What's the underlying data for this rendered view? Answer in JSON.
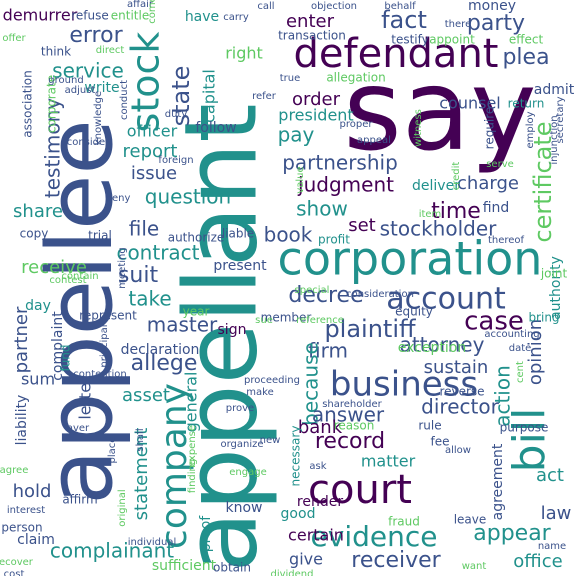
{
  "palette": [
    "#440154",
    "#3b528b",
    "#21918c",
    "#5ec962",
    "#fde725"
  ],
  "words": [
    {
      "text": "say",
      "color": "#440154"
    },
    {
      "text": "appellant",
      "color": "#21918c"
    },
    {
      "text": "appellee",
      "color": "#3b528b"
    },
    {
      "text": "corporation",
      "color": "#21918c"
    },
    {
      "text": "defendant",
      "color": "#440154"
    },
    {
      "text": "court",
      "color": "#440154"
    },
    {
      "text": "business",
      "color": "#3b528b"
    },
    {
      "text": "bill",
      "color": "#21918c"
    },
    {
      "text": "stock",
      "color": "#21918c"
    },
    {
      "text": "company",
      "color": "#21918c"
    },
    {
      "text": "evidence",
      "color": "#21918c"
    },
    {
      "text": "account",
      "color": "#3b528b"
    },
    {
      "text": "fact",
      "color": "#3b528b"
    },
    {
      "text": "case",
      "color": "#440154"
    },
    {
      "text": "plaintiff",
      "color": "#3b528b"
    },
    {
      "text": "receiver",
      "color": "#3b528b"
    },
    {
      "text": "certificate",
      "color": "#5ec962"
    },
    {
      "text": "party",
      "color": "#3b528b"
    },
    {
      "text": "plea",
      "color": "#3b528b"
    },
    {
      "text": "error",
      "color": "#3b528b"
    },
    {
      "text": "time",
      "color": "#440154"
    },
    {
      "text": "state",
      "color": "#3b528b"
    },
    {
      "text": "record",
      "color": "#440154"
    },
    {
      "text": "decree",
      "color": "#3b528b"
    },
    {
      "text": "attorney",
      "color": "#3b528b"
    },
    {
      "text": "appear",
      "color": "#21918c"
    },
    {
      "text": "judgment",
      "color": "#440154"
    },
    {
      "text": "partnership",
      "color": "#3b528b"
    },
    {
      "text": "question",
      "color": "#21918c"
    },
    {
      "text": "contract",
      "color": "#21918c"
    },
    {
      "text": "suit",
      "color": "#3b528b"
    },
    {
      "text": "master",
      "color": "#3b528b"
    },
    {
      "text": "allege",
      "color": "#3b528b"
    },
    {
      "text": "complainant",
      "color": "#21918c"
    },
    {
      "text": "director",
      "color": "#3b528b"
    },
    {
      "text": "firm",
      "color": "#3b528b"
    },
    {
      "text": "because",
      "color": "#21918c"
    },
    {
      "text": "action",
      "color": "#21918c"
    },
    {
      "text": "answer",
      "color": "#3b528b"
    },
    {
      "text": "book",
      "color": "#3b528b"
    },
    {
      "text": "stockholder",
      "color": "#3b528b"
    },
    {
      "text": "show",
      "color": "#21918c"
    },
    {
      "text": "file",
      "color": "#3b528b"
    },
    {
      "text": "service",
      "color": "#21918c"
    },
    {
      "text": "testimony",
      "color": "#3b528b"
    },
    {
      "text": "report",
      "color": "#21918c"
    },
    {
      "text": "charge",
      "color": "#3b528b"
    },
    {
      "text": "pay",
      "color": "#21918c"
    },
    {
      "text": "order",
      "color": "#440154"
    },
    {
      "text": "enter",
      "color": "#440154"
    },
    {
      "text": "share",
      "color": "#21918c"
    },
    {
      "text": "issue",
      "color": "#3b528b"
    },
    {
      "text": "set",
      "color": "#440154"
    },
    {
      "text": "receive",
      "color": "#5ec962"
    },
    {
      "text": "take",
      "color": "#21918c"
    },
    {
      "text": "partner",
      "color": "#3b528b"
    },
    {
      "text": "sustain",
      "color": "#3b528b"
    },
    {
      "text": "opinion",
      "color": "#3b528b"
    },
    {
      "text": "office",
      "color": "#21918c"
    },
    {
      "text": "law",
      "color": "#3b528b"
    },
    {
      "text": "statement",
      "color": "#21918c"
    },
    {
      "text": "bank",
      "color": "#440154"
    },
    {
      "text": "hold",
      "color": "#3b528b"
    },
    {
      "text": "act",
      "color": "#21918c"
    },
    {
      "text": "asset",
      "color": "#21918c"
    },
    {
      "text": "demurrer",
      "color": "#440154"
    },
    {
      "text": "counsel",
      "color": "#3b528b"
    },
    {
      "text": "president",
      "color": "#21918c"
    },
    {
      "text": "sum",
      "color": "#3b528b"
    },
    {
      "text": "letter",
      "color": "#3b528b"
    },
    {
      "text": "capital",
      "color": "#21918c"
    },
    {
      "text": "officer",
      "color": "#21918c"
    },
    {
      "text": "follow",
      "color": "#3b528b"
    },
    {
      "text": "right",
      "color": "#5ec962"
    },
    {
      "text": "general",
      "color": "#21918c"
    },
    {
      "text": "declaration",
      "color": "#3b528b"
    },
    {
      "text": "present",
      "color": "#3b528b"
    },
    {
      "text": "sign",
      "color": "#440154"
    },
    {
      "text": "certain",
      "color": "#440154"
    },
    {
      "text": "matter",
      "color": "#21918c"
    },
    {
      "text": "give",
      "color": "#3b528b"
    },
    {
      "text": "know",
      "color": "#3b528b"
    },
    {
      "text": "good",
      "color": "#21918c"
    },
    {
      "text": "claim",
      "color": "#3b528b"
    },
    {
      "text": "sufficient",
      "color": "#5ec962"
    },
    {
      "text": "liability",
      "color": "#3b528b"
    },
    {
      "text": "authority",
      "color": "#21918c"
    },
    {
      "text": "agreement",
      "color": "#3b528b"
    },
    {
      "text": "deliver",
      "color": "#21918c"
    },
    {
      "text": "find",
      "color": "#3b528b"
    },
    {
      "text": "money",
      "color": "#3b528b"
    },
    {
      "text": "admit",
      "color": "#3b528b"
    },
    {
      "text": "return",
      "color": "#21918c"
    },
    {
      "text": "allegation",
      "color": "#5ec962"
    },
    {
      "text": "have",
      "color": "#21918c"
    },
    {
      "text": "association",
      "color": "#3b528b"
    },
    {
      "text": "corporate",
      "color": "#5ec962"
    },
    {
      "text": "write",
      "color": "#21918c"
    },
    {
      "text": "think",
      "color": "#3b528b"
    },
    {
      "text": "day",
      "color": "#21918c"
    },
    {
      "text": "trial",
      "color": "#3b528b"
    },
    {
      "text": "copy",
      "color": "#3b528b"
    },
    {
      "text": "complaint",
      "color": "#3b528b"
    },
    {
      "text": "fund",
      "color": "#21918c"
    },
    {
      "text": "represent",
      "color": "#3b528b"
    },
    {
      "text": "year",
      "color": "#5ec962"
    },
    {
      "text": "exception",
      "color": "#5ec962"
    },
    {
      "text": "reverse",
      "color": "#3b528b"
    },
    {
      "text": "rule",
      "color": "#3b528b"
    },
    {
      "text": "fee",
      "color": "#3b528b"
    },
    {
      "text": "reason",
      "color": "#5ec962"
    },
    {
      "text": "purpose",
      "color": "#3b528b"
    },
    {
      "text": "bring",
      "color": "#21918c"
    },
    {
      "text": "equity",
      "color": "#3b528b"
    },
    {
      "text": "joint",
      "color": "#5ec962"
    },
    {
      "text": "render",
      "color": "#440154"
    },
    {
      "text": "fraud",
      "color": "#5ec962"
    },
    {
      "text": "leave",
      "color": "#3b528b"
    },
    {
      "text": "proof",
      "color": "#21918c"
    },
    {
      "text": "obtain",
      "color": "#3b528b"
    },
    {
      "text": "affirm",
      "color": "#3b528b"
    },
    {
      "text": "person",
      "color": "#3b528b"
    },
    {
      "text": "necessary",
      "color": "#21918c"
    },
    {
      "text": "member",
      "color": "#3b528b"
    },
    {
      "text": "profit",
      "color": "#21918c"
    },
    {
      "text": "liable",
      "color": "#3b528b"
    },
    {
      "text": "authorize",
      "color": "#3b528b"
    },
    {
      "text": "transaction",
      "color": "#3b528b"
    },
    {
      "text": "testify",
      "color": "#3b528b"
    },
    {
      "text": "appoint",
      "color": "#5ec962"
    },
    {
      "text": "effect",
      "color": "#5ec962"
    },
    {
      "text": "refuse",
      "color": "#3b528b"
    },
    {
      "text": "entitle",
      "color": "#5ec962"
    },
    {
      "text": "offer",
      "color": "#5ec962"
    },
    {
      "text": "direct",
      "color": "#5ec962"
    },
    {
      "text": "ground",
      "color": "#3b528b"
    },
    {
      "text": "affair",
      "color": "#3b528b"
    },
    {
      "text": "carry",
      "color": "#3b528b"
    },
    {
      "text": "call",
      "color": "#3b528b"
    },
    {
      "text": "objection",
      "color": "#3b528b"
    },
    {
      "text": "behalf",
      "color": "#3b528b"
    },
    {
      "text": "there",
      "color": "#3b528b"
    },
    {
      "text": "true",
      "color": "#3b528b"
    },
    {
      "text": "refer",
      "color": "#3b528b"
    },
    {
      "text": "duty",
      "color": "#3b528b"
    },
    {
      "text": "proper",
      "color": "#3b528b"
    },
    {
      "text": "appeal",
      "color": "#3b528b"
    },
    {
      "text": "witness",
      "color": "#5ec962"
    },
    {
      "text": "require",
      "color": "#3b528b"
    },
    {
      "text": "employ",
      "color": "#3b528b"
    },
    {
      "text": "secretary",
      "color": "#3b528b"
    },
    {
      "text": "injunction",
      "color": "#3b528b"
    },
    {
      "text": "credit",
      "color": "#5ec962"
    },
    {
      "text": "serve",
      "color": "#5ec962"
    },
    {
      "text": "deny",
      "color": "#3b528b"
    },
    {
      "text": "foreign",
      "color": "#3b528b"
    },
    {
      "text": "consider",
      "color": "#3b528b"
    },
    {
      "text": "knowledge",
      "color": "#3b528b"
    },
    {
      "text": "conduct",
      "color": "#3b528b"
    },
    {
      "text": "come",
      "color": "#5ec962"
    },
    {
      "text": "value",
      "color": "#5ec962"
    },
    {
      "text": "item",
      "color": "#5ec962"
    },
    {
      "text": "thereof",
      "color": "#3b528b"
    },
    {
      "text": "special",
      "color": "#5ec962"
    },
    {
      "text": "consideration",
      "color": "#3b528b"
    },
    {
      "text": "sue",
      "color": "#5ec962"
    },
    {
      "text": "reference",
      "color": "#5ec962"
    },
    {
      "text": "accounting",
      "color": "#3b528b"
    },
    {
      "text": "cent",
      "color": "#5ec962"
    },
    {
      "text": "date",
      "color": "#3b528b"
    },
    {
      "text": "meeting",
      "color": "#3b528b"
    },
    {
      "text": "principal",
      "color": "#3b528b"
    },
    {
      "text": "contest",
      "color": "#5ec962"
    },
    {
      "text": "contention",
      "color": "#3b528b"
    },
    {
      "text": "aver",
      "color": "#3b528b"
    },
    {
      "text": "agree",
      "color": "#5ec962"
    },
    {
      "text": "interest",
      "color": "#3b528b"
    },
    {
      "text": "recover",
      "color": "#5ec962"
    },
    {
      "text": "original",
      "color": "#5ec962"
    },
    {
      "text": "shall",
      "color": "#3b528b"
    },
    {
      "text": "expense",
      "color": "#5ec962"
    },
    {
      "text": "place",
      "color": "#3b528b"
    },
    {
      "text": "individual",
      "color": "#3b528b"
    },
    {
      "text": "finding",
      "color": "#5ec962"
    },
    {
      "text": "organize",
      "color": "#3b528b"
    },
    {
      "text": "new",
      "color": "#3b528b"
    },
    {
      "text": "engage",
      "color": "#5ec962"
    },
    {
      "text": "prove",
      "color": "#3b528b"
    },
    {
      "text": "make",
      "color": "#3b528b"
    },
    {
      "text": "proceeding",
      "color": "#3b528b"
    },
    {
      "text": "shareholder",
      "color": "#3b528b"
    },
    {
      "text": "ask",
      "color": "#3b528b"
    },
    {
      "text": "allow",
      "color": "#3b528b"
    },
    {
      "text": "dividend",
      "color": "#5ec962"
    },
    {
      "text": "name",
      "color": "#3b528b"
    },
    {
      "text": "want",
      "color": "#5ec962"
    },
    {
      "text": "cost",
      "color": "#3b528b"
    },
    {
      "text": "contain",
      "color": "#5ec962"
    },
    {
      "text": "adjust",
      "color": "#3b528b"
    }
  ]
}
